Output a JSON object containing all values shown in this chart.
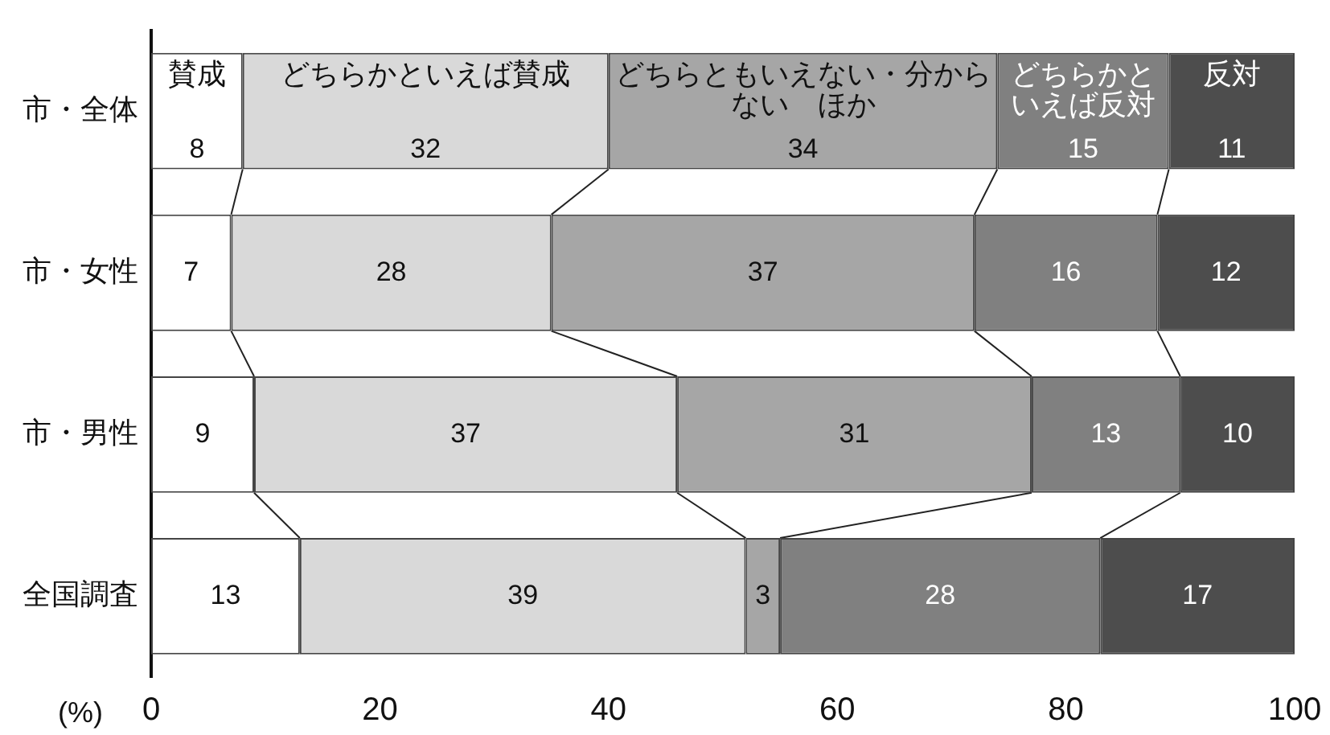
{
  "chart_data": {
    "type": "bar",
    "orientation": "horizontal",
    "stacked": true,
    "xlabel": "(%)",
    "categories": [
      "市・全体",
      "市・女性",
      "市・男性",
      "全国調査"
    ],
    "series": [
      {
        "name": "賛成",
        "color": "#ffffff",
        "values": [
          8,
          7,
          9,
          13
        ]
      },
      {
        "name": "どちらかといえば賛成",
        "color": "#d9d9d9",
        "values": [
          32,
          28,
          37,
          39
        ]
      },
      {
        "name": "どちらともいえない・分からない　ほか",
        "color": "#a6a6a6",
        "values": [
          34,
          37,
          31,
          3
        ]
      },
      {
        "name": "どちらかといえば反対",
        "color": "#808080",
        "values": [
          15,
          16,
          13,
          28
        ]
      },
      {
        "name": "反対",
        "color": "#4d4d4d",
        "values": [
          11,
          12,
          10,
          17
        ]
      }
    ],
    "xlim": [
      0,
      100
    ],
    "xticks": [
      0,
      20,
      40,
      60,
      80,
      100
    ],
    "grid": false,
    "legend": false,
    "data_labels": true
  }
}
